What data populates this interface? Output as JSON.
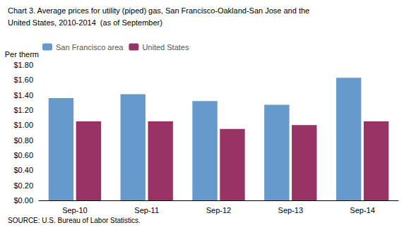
{
  "chart_data": {
    "type": "bar",
    "title": "Chart 3. Average prices for utility (piped) gas, San Francisco-Oakland-San Jose and the",
    "subtitle": "United States, 2010-2014  (as of September)",
    "ylabel": "Per therm",
    "annotations": [
      "SOURCE: U.S. Bureau of Labor Statistics."
    ],
    "categories": [
      "Sep-10",
      "Sep-11",
      "Sep-12",
      "Sep-13",
      "Sep-14"
    ],
    "series": [
      {
        "name": "San Francisco area",
        "color": "#6699CC",
        "values": [
          1.36,
          1.41,
          1.32,
          1.27,
          1.63
        ]
      },
      {
        "name": "United States",
        "color": "#993366",
        "values": [
          1.05,
          1.05,
          0.95,
          1.0,
          1.05
        ]
      }
    ],
    "ylim": [
      0,
      1.8
    ],
    "yticks": [
      {
        "value": 0.0,
        "label": "$0.00"
      },
      {
        "value": 0.2,
        "label": "$0.20"
      },
      {
        "value": 0.4,
        "label": "$0.40"
      },
      {
        "value": 0.6,
        "label": "$0.60"
      },
      {
        "value": 0.8,
        "label": "$0.80"
      },
      {
        "value": 1.0,
        "label": "$1.00"
      },
      {
        "value": 1.2,
        "label": "$1.20"
      },
      {
        "value": 1.4,
        "label": "$1.40"
      },
      {
        "value": 1.6,
        "label": "$1.60"
      },
      {
        "value": 1.8,
        "label": "$1.80"
      }
    ],
    "legend": "upper left",
    "grid": false
  }
}
